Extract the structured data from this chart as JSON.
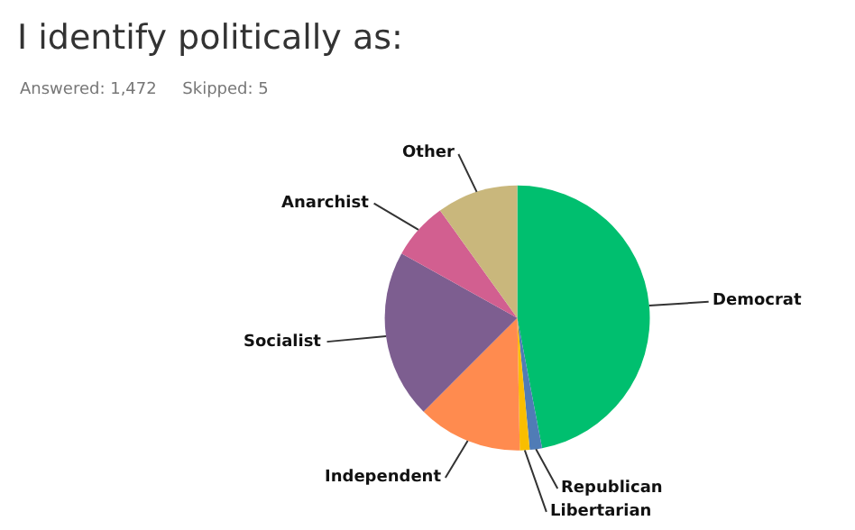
{
  "chart_data": {
    "type": "pie",
    "title": "I identify politically as:",
    "subtitle": "Answered: 1,472     Skipped: 5",
    "categories": [
      "Democrat",
      "Republican",
      "Libertarian",
      "Independent",
      "Socialist",
      "Anarchist",
      "Other"
    ],
    "values": [
      47,
      1.5,
      1.2,
      12.8,
      20.6,
      7,
      9.9
    ],
    "colors": [
      "#00bf6f",
      "#507cb6",
      "#f9be00",
      "#ff8b4f",
      "#7d5e90",
      "#d25f90",
      "#c9b77c"
    ]
  }
}
